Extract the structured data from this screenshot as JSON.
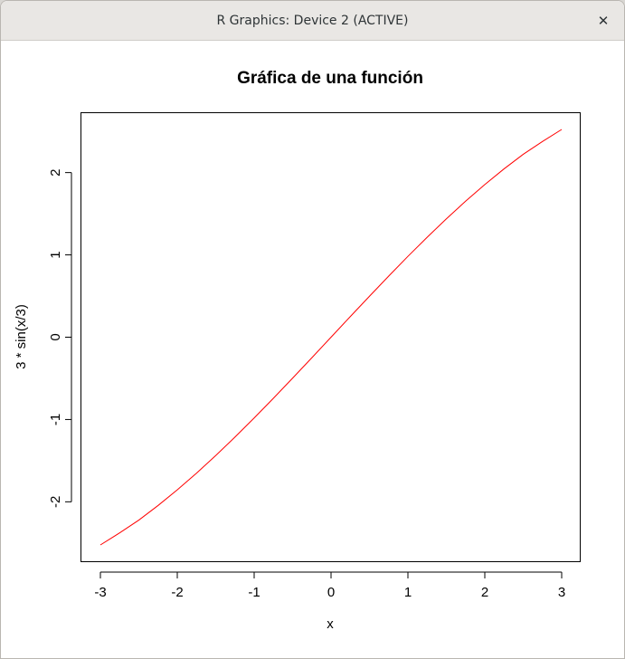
{
  "window": {
    "title": "R Graphics: Device 2 (ACTIVE)",
    "close_glyph": "✕"
  },
  "chart_data": {
    "type": "line",
    "title": "Gráfica de una función",
    "xlabel": "x",
    "ylabel": "3 * sin(x/3)",
    "xlim": [
      -3,
      3
    ],
    "ylim": [
      -2.524,
      2.524
    ],
    "x_ticks": [
      "-3",
      "-2",
      "-1",
      "0",
      "1",
      "2",
      "3"
    ],
    "y_ticks": [
      "-2",
      "-1",
      "0",
      "1",
      "2"
    ],
    "grid": false,
    "series": [
      {
        "color": "#ff0000",
        "x": [
          -3,
          -2.75,
          -2.5,
          -2.25,
          -2,
          -1.75,
          -1.5,
          -1.25,
          -1,
          -0.75,
          -0.5,
          -0.25,
          0,
          0.25,
          0.5,
          0.75,
          1,
          1.25,
          1.5,
          1.75,
          2,
          2.25,
          2.5,
          2.75,
          3
        ],
        "y": [
          -2.524,
          -2.378,
          -2.222,
          -2.045,
          -1.855,
          -1.652,
          -1.438,
          -1.214,
          -0.982,
          -0.742,
          -0.498,
          -0.25,
          0,
          0.25,
          0.498,
          0.742,
          0.982,
          1.214,
          1.438,
          1.652,
          1.855,
          2.045,
          2.222,
          2.378,
          2.524
        ]
      }
    ]
  }
}
